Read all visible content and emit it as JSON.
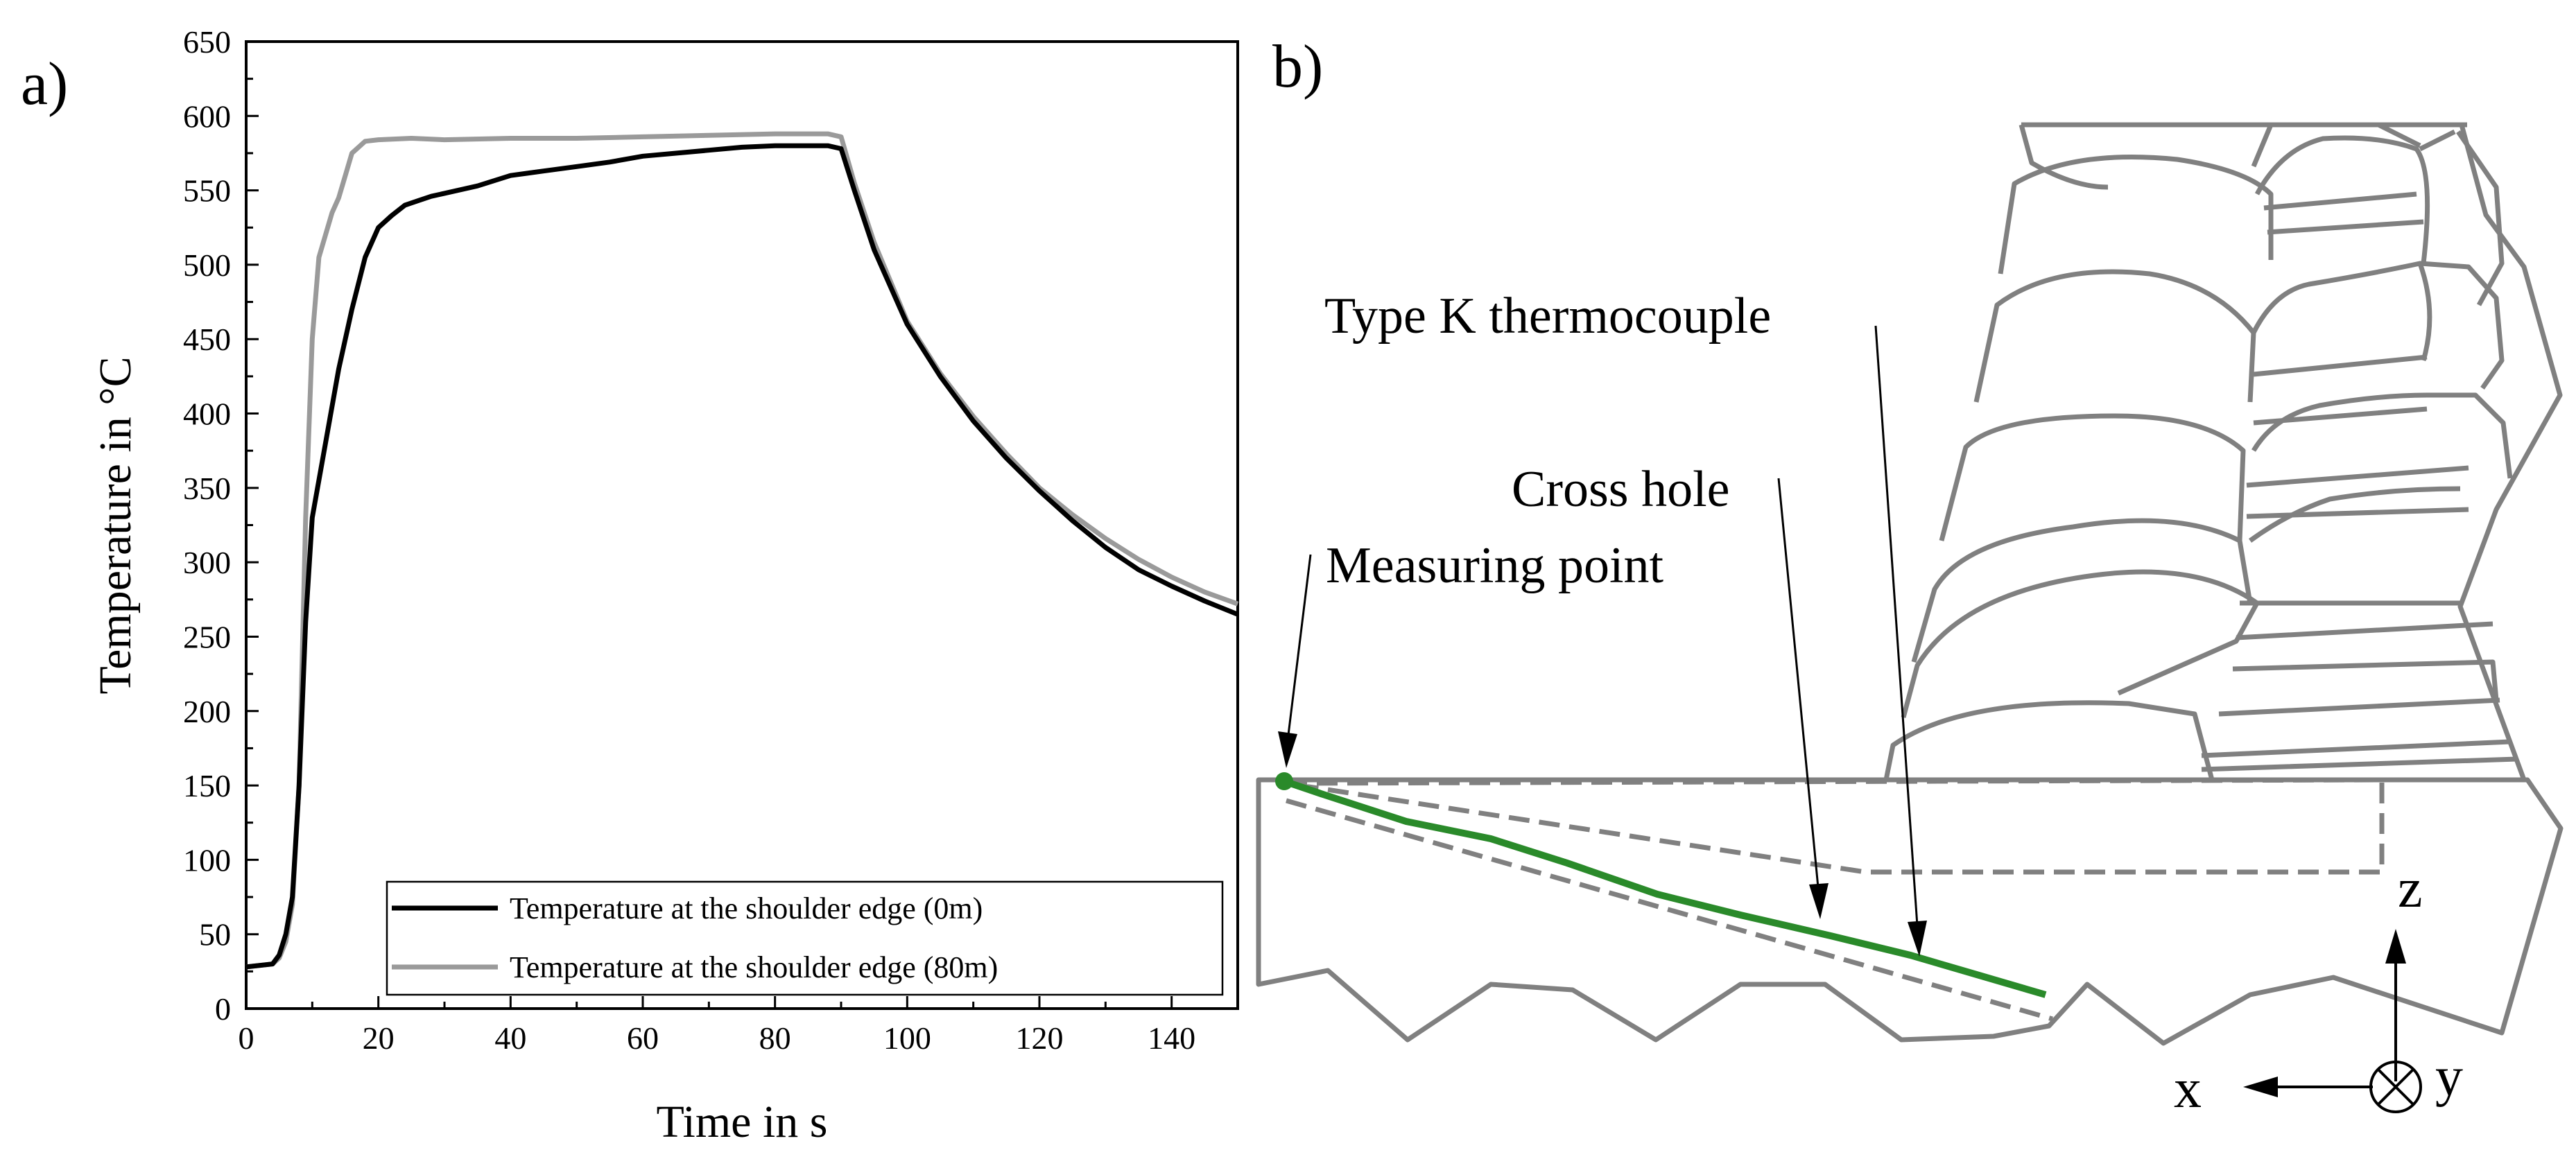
{
  "panel_labels": {
    "a": "a)",
    "b": "b)"
  },
  "chart_data": {
    "type": "line",
    "xlabel": "Time in s",
    "ylabel": "Temperature in °C",
    "xlim": [
      0,
      150
    ],
    "ylim": [
      0,
      650
    ],
    "x_ticks": [
      0,
      20,
      40,
      60,
      80,
      100,
      120,
      140
    ],
    "y_ticks": [
      0,
      50,
      100,
      150,
      200,
      250,
      300,
      350,
      400,
      450,
      500,
      550,
      600,
      650
    ],
    "grid": false,
    "legend_position": "bottom-right",
    "series": [
      {
        "name": "Temperature at the shoulder edge (0m)",
        "color": "#000000",
        "points": [
          [
            0,
            28
          ],
          [
            4,
            30
          ],
          [
            5,
            36
          ],
          [
            6,
            50
          ],
          [
            7,
            75
          ],
          [
            8,
            150
          ],
          [
            9,
            260
          ],
          [
            10,
            330
          ],
          [
            12,
            380
          ],
          [
            14,
            430
          ],
          [
            16,
            470
          ],
          [
            18,
            505
          ],
          [
            20,
            525
          ],
          [
            22,
            533
          ],
          [
            24,
            540
          ],
          [
            26,
            543
          ],
          [
            28,
            546
          ],
          [
            30,
            548
          ],
          [
            35,
            553
          ],
          [
            40,
            560
          ],
          [
            45,
            563
          ],
          [
            50,
            566
          ],
          [
            55,
            569
          ],
          [
            60,
            573
          ],
          [
            65,
            575
          ],
          [
            70,
            577
          ],
          [
            75,
            579
          ],
          [
            80,
            580
          ],
          [
            85,
            580
          ],
          [
            88,
            580
          ],
          [
            90,
            578
          ],
          [
            92,
            550
          ],
          [
            95,
            510
          ],
          [
            100,
            460
          ],
          [
            105,
            425
          ],
          [
            110,
            395
          ],
          [
            115,
            370
          ],
          [
            120,
            348
          ],
          [
            125,
            328
          ],
          [
            130,
            310
          ],
          [
            135,
            295
          ],
          [
            140,
            284
          ],
          [
            145,
            274
          ],
          [
            150,
            265
          ]
        ]
      },
      {
        "name": "Temperature at the shoulder edge (80m)",
        "color": "#9a9a9a",
        "points": [
          [
            0,
            28
          ],
          [
            4,
            30
          ],
          [
            5,
            34
          ],
          [
            6,
            45
          ],
          [
            7,
            70
          ],
          [
            8,
            150
          ],
          [
            9,
            330
          ],
          [
            10,
            450
          ],
          [
            11,
            505
          ],
          [
            12,
            520
          ],
          [
            13,
            535
          ],
          [
            14,
            545
          ],
          [
            15,
            560
          ],
          [
            16,
            575
          ],
          [
            18,
            583
          ],
          [
            20,
            584
          ],
          [
            25,
            585
          ],
          [
            30,
            584
          ],
          [
            40,
            585
          ],
          [
            50,
            585
          ],
          [
            60,
            586
          ],
          [
            70,
            587
          ],
          [
            80,
            588
          ],
          [
            85,
            588
          ],
          [
            88,
            588
          ],
          [
            90,
            586
          ],
          [
            92,
            555
          ],
          [
            95,
            515
          ],
          [
            100,
            462
          ],
          [
            105,
            427
          ],
          [
            110,
            398
          ],
          [
            115,
            373
          ],
          [
            120,
            350
          ],
          [
            125,
            332
          ],
          [
            130,
            316
          ],
          [
            135,
            302
          ],
          [
            140,
            290
          ],
          [
            145,
            280
          ],
          [
            150,
            272
          ]
        ]
      }
    ]
  },
  "diagram": {
    "labels": {
      "thermocouple": "Type K thermocouple",
      "cross_hole": "Cross hole",
      "measuring_point": "Measuring point"
    },
    "axes": {
      "z": "z",
      "x": "x",
      "y": "y"
    },
    "colors": {
      "thermocouple": "#2a8a2a",
      "outline": "#808080"
    }
  }
}
